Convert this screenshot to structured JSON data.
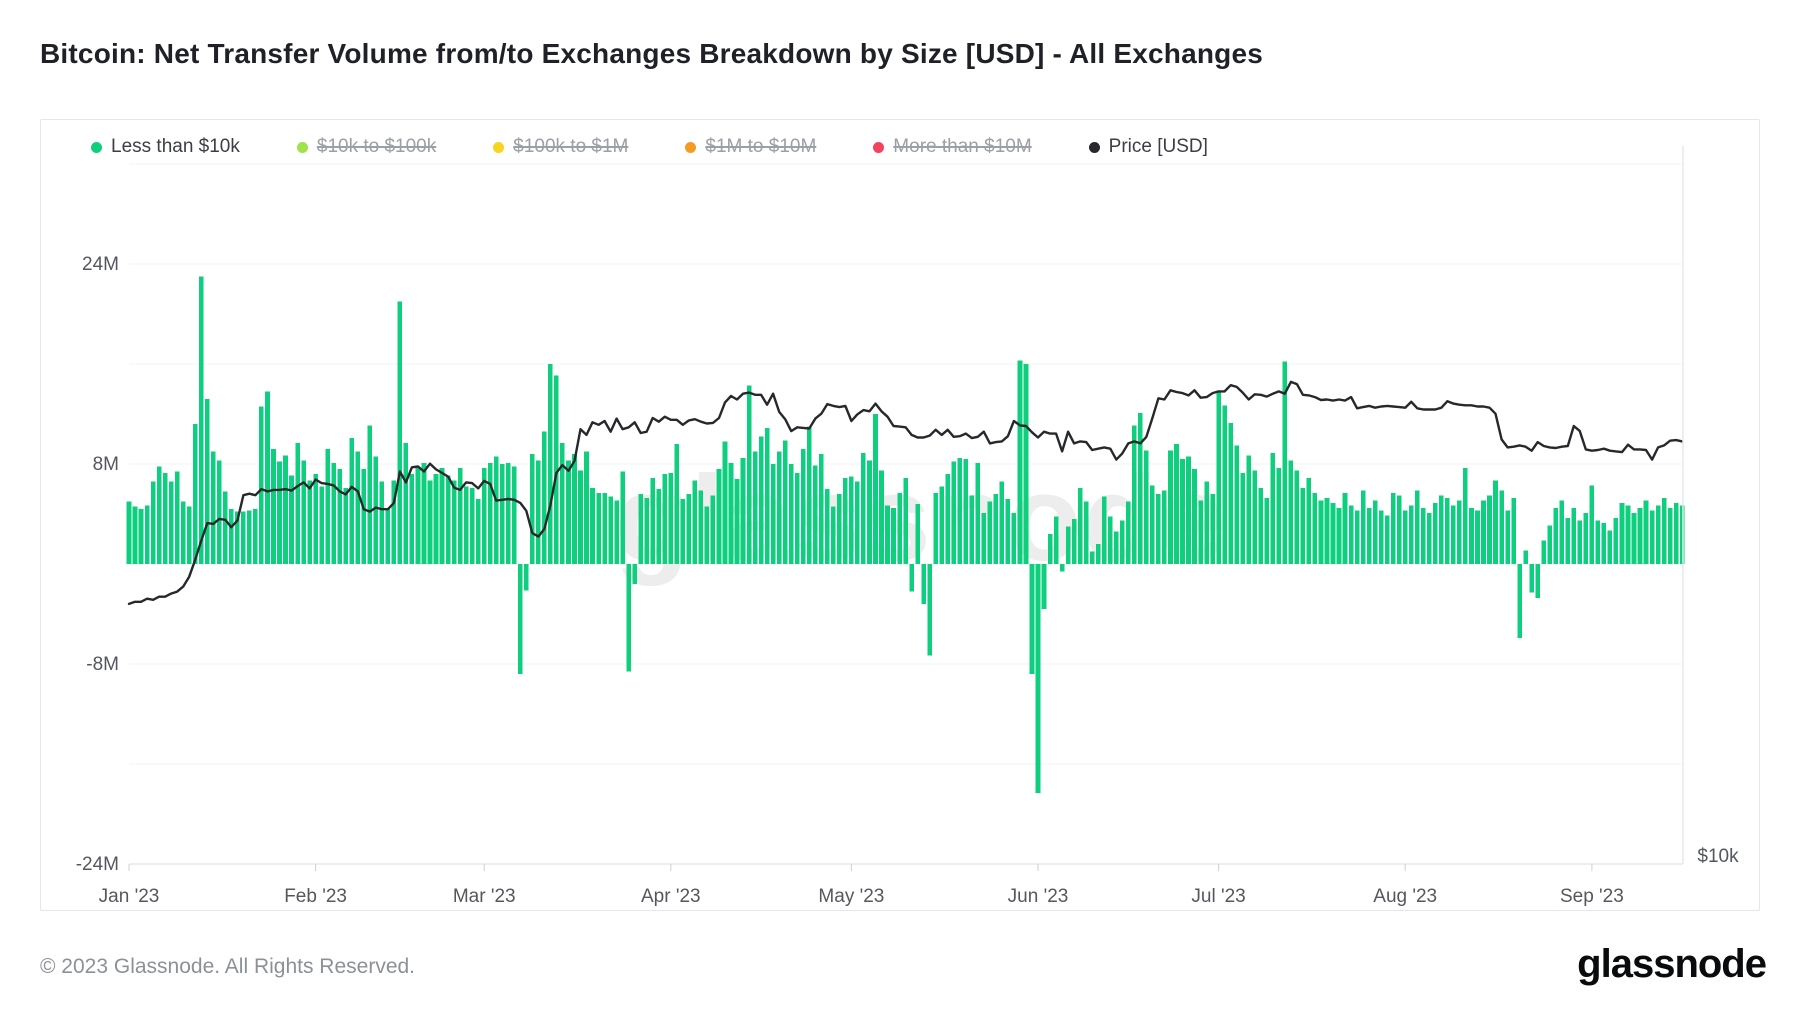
{
  "page": {
    "title": "Bitcoin: Net Transfer Volume from/to Exchanges Breakdown by Size [USD] - All Exchanges"
  },
  "legend": {
    "items": [
      {
        "label": "Less than $10k",
        "color": "#0ecf7d",
        "active": true
      },
      {
        "label": "$10k to $100k",
        "color": "#9fe24a",
        "active": false
      },
      {
        "label": "$100k to $1M",
        "color": "#f6d420",
        "active": false
      },
      {
        "label": "$1M to $10M",
        "color": "#f59b23",
        "active": false
      },
      {
        "label": "More than $10M",
        "color": "#f2425c",
        "active": false
      },
      {
        "label": "Price [USD]",
        "color": "#26282c",
        "active": true
      }
    ]
  },
  "watermark": "glassnode",
  "footer": {
    "copyright": "© 2023 Glassnode. All Rights Reserved.",
    "brand": "glassnode"
  },
  "chart_data": {
    "type": "mixed-bar-line",
    "start_date": "2023-01-01",
    "end_date": "2023-09-16",
    "x_axis": {
      "labels": [
        "Jan '23",
        "Feb '23",
        "Mar '23",
        "Apr '23",
        "May '23",
        "Jun '23",
        "Jul '23",
        "Aug '23",
        "Sep '23"
      ],
      "month_start_day_index": [
        0,
        31,
        59,
        90,
        120,
        151,
        181,
        212,
        243
      ]
    },
    "y_axis": {
      "unit": "M USD",
      "tick_labels": [
        "24M",
        "8M",
        "-8M",
        "-24M"
      ],
      "tick_values": [
        24,
        8,
        -8,
        -24
      ],
      "gridline_values": [
        32,
        24,
        16,
        8,
        0,
        -8,
        -16
      ],
      "axis_range": [
        -25.5,
        33.8
      ]
    },
    "right_axis": {
      "visible_tick": "$10k"
    },
    "series": [
      {
        "name": "Less than $10k",
        "type": "column",
        "color": "#0ecf7d",
        "unit": "M USD (net transfer volume)",
        "values_by_month": {
          "jan": [
            5.0,
            4.6,
            4.4,
            4.7,
            6.6,
            7.8,
            7.3,
            6.6,
            7.4,
            5.0,
            4.6,
            11.2,
            23.0,
            13.2,
            9.0,
            8.3,
            5.8,
            4.4,
            4.2,
            4.2,
            4.3,
            4.4,
            12.6,
            13.8,
            9.2,
            8.2,
            8.7,
            7.1,
            9.7,
            8.3,
            6.7
          ],
          "feb": [
            7.2,
            6.2,
            9.2,
            8.1,
            7.6,
            6.1,
            10.1,
            9.0,
            7.6,
            11.1,
            8.6,
            6.6,
            4.4,
            6.7,
            21.0,
            9.7,
            7.2,
            7.7,
            8.1,
            6.7,
            7.2,
            7.7,
            7.1,
            6.7,
            7.7,
            6.2,
            6.1,
            5.2
          ],
          "mar": [
            7.7,
            8.1,
            8.6,
            8.0,
            8.1,
            7.8,
            -8.8,
            -2.1,
            8.8,
            8.3,
            10.6,
            16.0,
            15.1,
            9.7,
            8.3,
            8.8,
            7.5,
            9.0,
            6.1,
            5.7,
            5.7,
            5.4,
            5.1,
            7.4,
            -8.6,
            -1.6,
            5.6,
            5.3,
            6.9,
            6.0,
            7.2
          ],
          "apr": [
            7.3,
            9.6,
            5.2,
            5.6,
            6.7,
            5.9,
            4.6,
            5.5,
            7.6,
            9.8,
            8.1,
            6.8,
            8.5,
            14.3,
            9.0,
            10.2,
            10.9,
            8.0,
            9.0,
            9.9,
            8.0,
            7.3,
            9.2,
            11.0,
            7.9,
            8.8,
            6.0,
            4.6,
            5.6,
            6.9
          ],
          "may": [
            7.0,
            6.6,
            8.9,
            8.3,
            12.0,
            7.5,
            4.7,
            4.5,
            5.7,
            6.9,
            -2.2,
            4.8,
            -3.2,
            -7.3,
            5.7,
            6.2,
            7.2,
            8.2,
            8.5,
            8.4,
            5.5,
            8.1,
            4.1,
            5.0,
            5.6,
            6.6,
            5.2,
            4.1,
            16.3,
            16.0,
            -8.8
          ],
          "jun": [
            -18.3,
            -3.6,
            2.4,
            3.8,
            -0.6,
            3.0,
            3.6,
            6.1,
            5.0,
            1.0,
            1.6,
            5.4,
            3.8,
            2.6,
            3.5,
            5.0,
            11.1,
            12.1,
            9.1,
            6.3,
            5.6,
            5.9,
            9.1,
            9.6,
            8.4,
            8.6,
            7.6,
            5.1,
            6.6,
            5.6
          ],
          "jul": [
            13.9,
            12.7,
            11.3,
            9.5,
            7.3,
            8.7,
            7.5,
            6.1,
            5.3,
            8.9,
            7.7,
            16.2,
            8.3,
            7.5,
            6.1,
            6.9,
            5.7,
            5.1,
            5.3,
            4.9,
            4.5,
            5.7,
            4.7,
            4.3,
            5.9,
            4.5,
            5.1,
            4.3,
            3.9,
            5.7,
            5.5
          ],
          "aug": [
            4.3,
            4.7,
            5.9,
            4.5,
            4.1,
            4.9,
            5.5,
            5.3,
            4.7,
            5.1,
            7.7,
            4.5,
            4.3,
            5.1,
            5.5,
            6.7,
            5.9,
            4.3,
            5.3,
            -5.9,
            1.1,
            -2.3,
            -2.7,
            1.9,
            3.1,
            4.5,
            5.1,
            3.7,
            4.5,
            3.5,
            4.1
          ],
          "sep": [
            6.3,
            3.5,
            3.3,
            2.7,
            3.7,
            4.9,
            4.7,
            4.1,
            4.5,
            5.1,
            4.3,
            4.7,
            5.3,
            4.5,
            4.9,
            4.7
          ]
        }
      },
      {
        "name": "Price [USD]",
        "type": "line",
        "color": "#26282c",
        "unit": "thousand USD",
        "values_by_month": {
          "jan": [
            16.6,
            16.7,
            16.7,
            16.85,
            16.8,
            16.95,
            16.95,
            17.1,
            17.2,
            17.45,
            17.95,
            18.85,
            19.9,
            20.95,
            20.9,
            21.2,
            21.15,
            20.7,
            21.1,
            22.7,
            22.8,
            22.7,
            23.1,
            22.95,
            23.05,
            23.05,
            23.1,
            23.0,
            23.3,
            23.55,
            23.15
          ],
          "feb": [
            23.75,
            23.5,
            23.45,
            23.35,
            22.95,
            22.75,
            23.25,
            22.95,
            21.8,
            21.65,
            21.9,
            21.8,
            21.8,
            22.2,
            24.3,
            23.55,
            24.6,
            24.65,
            24.3,
            24.85,
            24.45,
            24.2,
            23.95,
            23.2,
            23.05,
            23.55,
            23.5,
            23.15
          ],
          "mar": [
            23.65,
            23.45,
            22.35,
            22.4,
            22.45,
            22.4,
            22.2,
            21.7,
            20.35,
            20.15,
            20.6,
            22.05,
            24.2,
            24.75,
            24.35,
            25.05,
            27.45,
            27.0,
            28.0,
            27.8,
            28.1,
            27.25,
            28.3,
            27.45,
            27.6,
            28.0,
            27.15,
            27.25,
            28.35,
            28.05,
            28.45
          ],
          "apr": [
            28.2,
            28.2,
            27.8,
            28.15,
            28.25,
            28.05,
            27.9,
            27.95,
            28.35,
            29.65,
            30.2,
            29.9,
            30.4,
            30.5,
            30.3,
            30.3,
            29.45,
            30.4,
            28.85,
            28.25,
            27.3,
            27.6,
            27.55,
            27.5,
            28.3,
            28.7,
            29.5,
            29.35,
            29.25,
            29.35
          ],
          "may": [
            28.1,
            28.65,
            29.0,
            28.9,
            29.55,
            28.9,
            28.45,
            27.7,
            27.65,
            27.6,
            27.0,
            26.8,
            26.8,
            26.95,
            27.4,
            27.0,
            27.4,
            26.85,
            26.9,
            27.1,
            26.75,
            26.85,
            27.25,
            26.35,
            26.45,
            26.5,
            26.9,
            28.1,
            27.75,
            27.7,
            27.2
          ],
          "jun": [
            26.8,
            27.25,
            27.1,
            27.1,
            25.75,
            27.25,
            26.35,
            26.5,
            26.45,
            25.85,
            25.95,
            26.05,
            25.95,
            25.15,
            25.6,
            26.35,
            26.5,
            26.35,
            26.85,
            28.35,
            30.0,
            29.9,
            30.7,
            30.55,
            30.45,
            30.25,
            30.7,
            30.05,
            30.1,
            30.45
          ],
          "jul": [
            30.6,
            30.6,
            31.15,
            31.0,
            30.5,
            29.9,
            30.35,
            30.3,
            30.15,
            30.4,
            30.6,
            30.4,
            31.45,
            31.25,
            30.3,
            30.25,
            30.1,
            29.85,
            29.9,
            29.8,
            29.9,
            29.8,
            30.1,
            29.15,
            29.25,
            29.35,
            29.2,
            29.3,
            29.35,
            29.3,
            29.25
          ],
          "aug": [
            29.2,
            29.7,
            29.15,
            29.05,
            29.05,
            29.05,
            29.2,
            29.75,
            29.55,
            29.45,
            29.4,
            29.4,
            29.3,
            29.3,
            29.2,
            28.7,
            26.65,
            26.05,
            26.1,
            26.2,
            26.1,
            25.8,
            26.45,
            26.15,
            26.05,
            26.0,
            26.1,
            26.15,
            27.7,
            27.3,
            25.9
          ],
          "sep": [
            25.8,
            25.85,
            25.95,
            25.8,
            25.75,
            25.7,
            26.25,
            25.9,
            25.9,
            25.85,
            25.15,
            26.05,
            26.2,
            26.55,
            26.6,
            26.5
          ]
        }
      }
    ]
  }
}
